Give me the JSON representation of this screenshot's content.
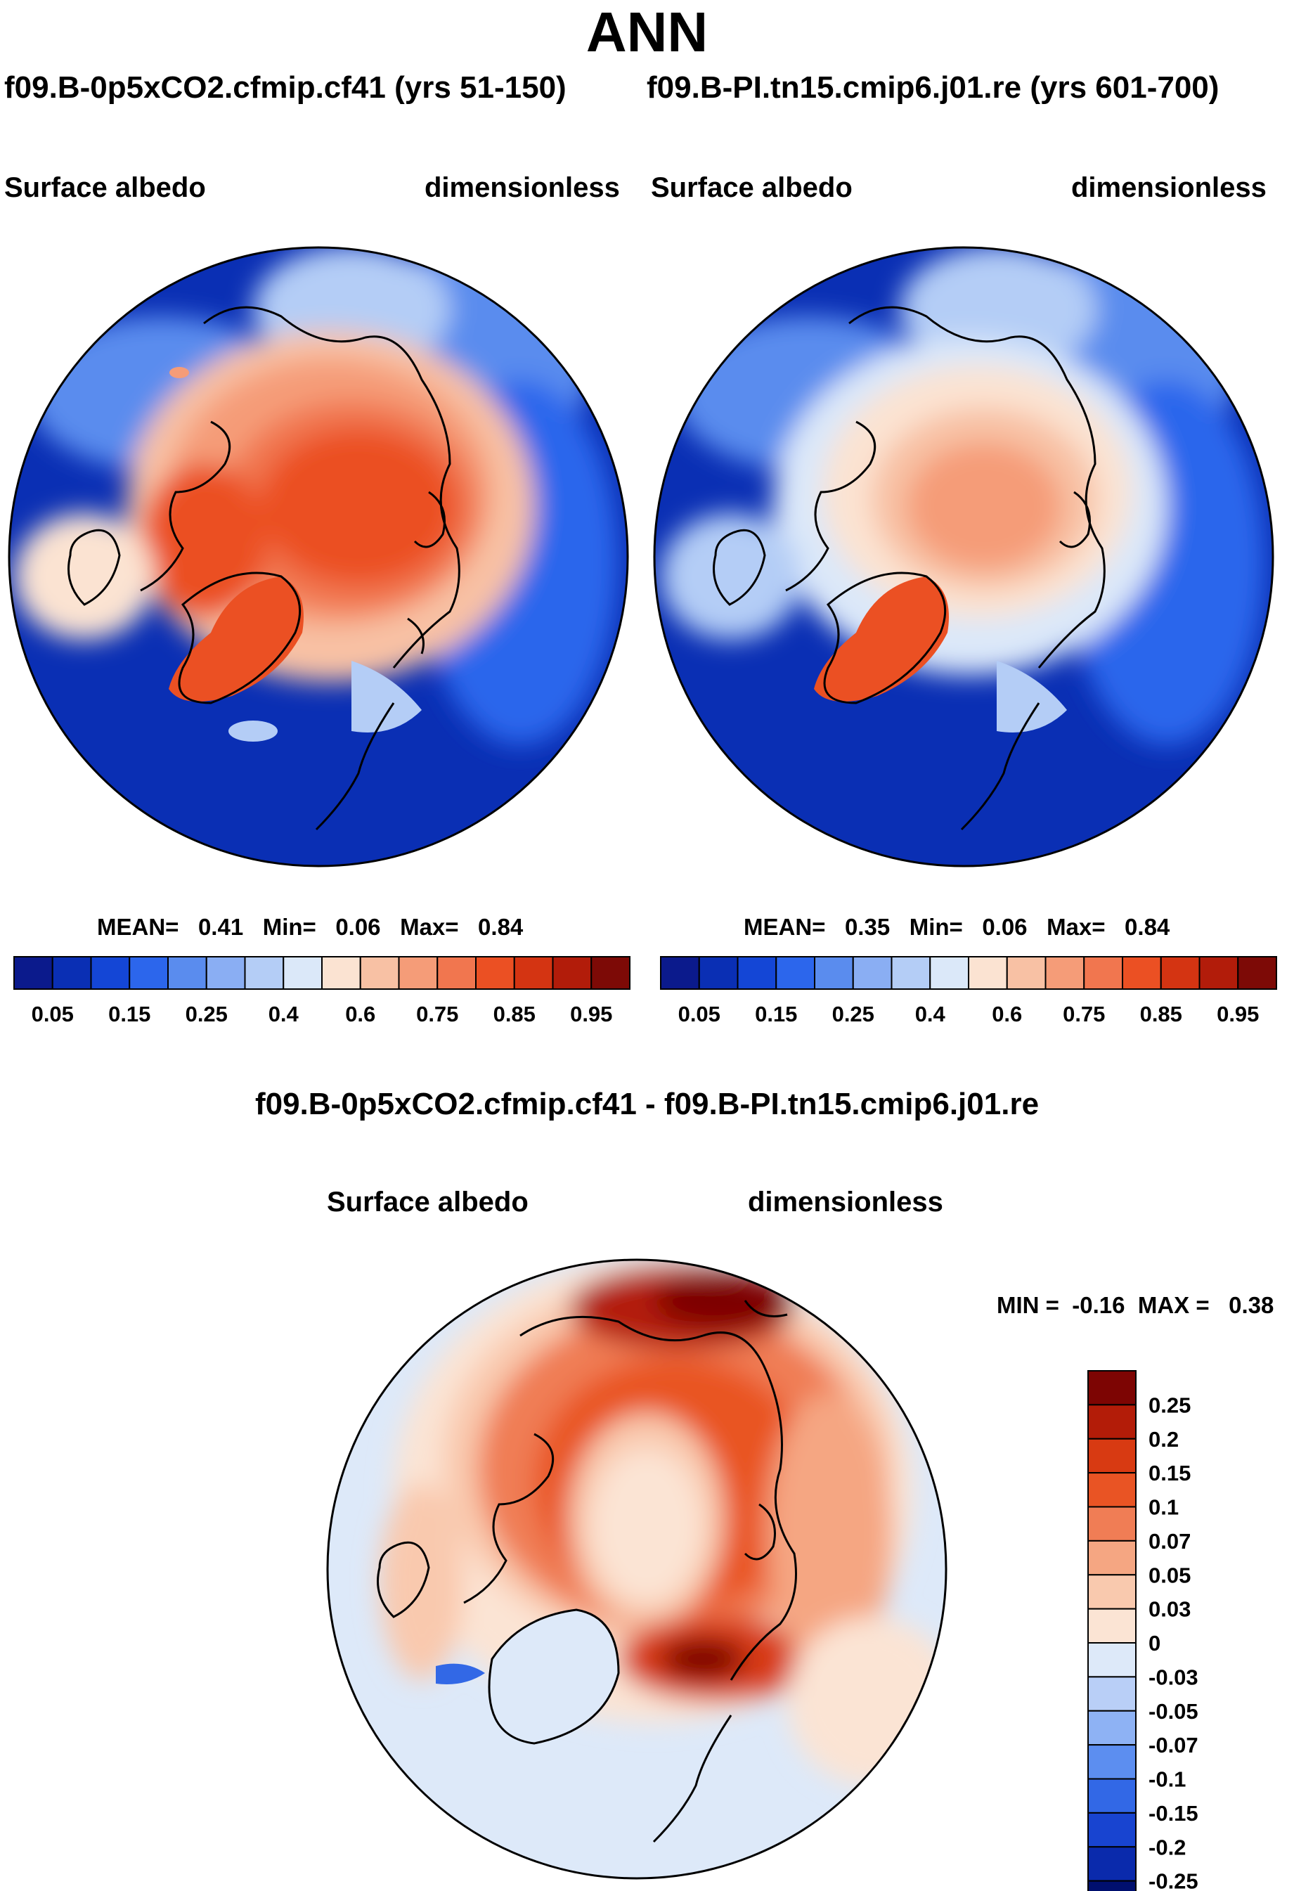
{
  "title": "ANN",
  "left_panel": {
    "run": "f09.B-0p5xCO2.cfmip.cf41 (yrs 51-150)",
    "variable": "Surface albedo",
    "units": "dimensionless",
    "stats": {
      "mean_label": "MEAN=",
      "mean": "0.41",
      "min_label": "Min=",
      "min": "0.06",
      "max_label": "Max=",
      "max": "0.84"
    },
    "colorbar_ticks": [
      "0.05",
      "0.15",
      "0.25",
      "0.4",
      "0.6",
      "0.75",
      "0.85",
      "0.95"
    ]
  },
  "right_panel": {
    "run": "f09.B-PI.tn15.cmip6.j01.re (yrs 601-700)",
    "variable": "Surface albedo",
    "units": "dimensionless",
    "stats": {
      "mean_label": "MEAN=",
      "mean": "0.35",
      "min_label": "Min=",
      "min": "0.06",
      "max_label": "Max=",
      "max": "0.84"
    },
    "colorbar_ticks": [
      "0.05",
      "0.15",
      "0.25",
      "0.4",
      "0.6",
      "0.75",
      "0.85",
      "0.95"
    ]
  },
  "difference_panel": {
    "title": "f09.B-0p5xCO2.cfmip.cf41 - f09.B-PI.tn15.cmip6.j01.re",
    "variable": "Surface albedo",
    "units": "dimensionless",
    "min_label": "MIN =",
    "min": "-0.16",
    "max_label": "MAX =",
    "max": "0.38",
    "colorbar_ticks": [
      "0.25",
      "0.2",
      "0.15",
      "0.1",
      "0.07",
      "0.05",
      "0.03",
      "0",
      "-0.03",
      "-0.05",
      "-0.07",
      "-0.1",
      "-0.15",
      "-0.2",
      "-0.25"
    ]
  },
  "colors": {
    "abs_scale": [
      "#0b1a8c",
      "#0a2fb4",
      "#1446d6",
      "#2c66ec",
      "#5a8cee",
      "#8aaef3",
      "#b4cdf6",
      "#dbe8f9",
      "#fbe3d2",
      "#f8c1a4",
      "#f59c78",
      "#f1764f",
      "#eb5023",
      "#d43412",
      "#b21c0a",
      "#7d0a06"
    ],
    "diff_scale": [
      "#000f6e",
      "#0a2aac",
      "#1844d0",
      "#3268e6",
      "#5c8ef0",
      "#8eb2f4",
      "#b9cff7",
      "#dde9f9",
      "#fbe4d4",
      "#f9c9ae",
      "#f5a682",
      "#f07d55",
      "#e95424",
      "#d83a12",
      "#b31c08",
      "#7d0503"
    ]
  }
}
